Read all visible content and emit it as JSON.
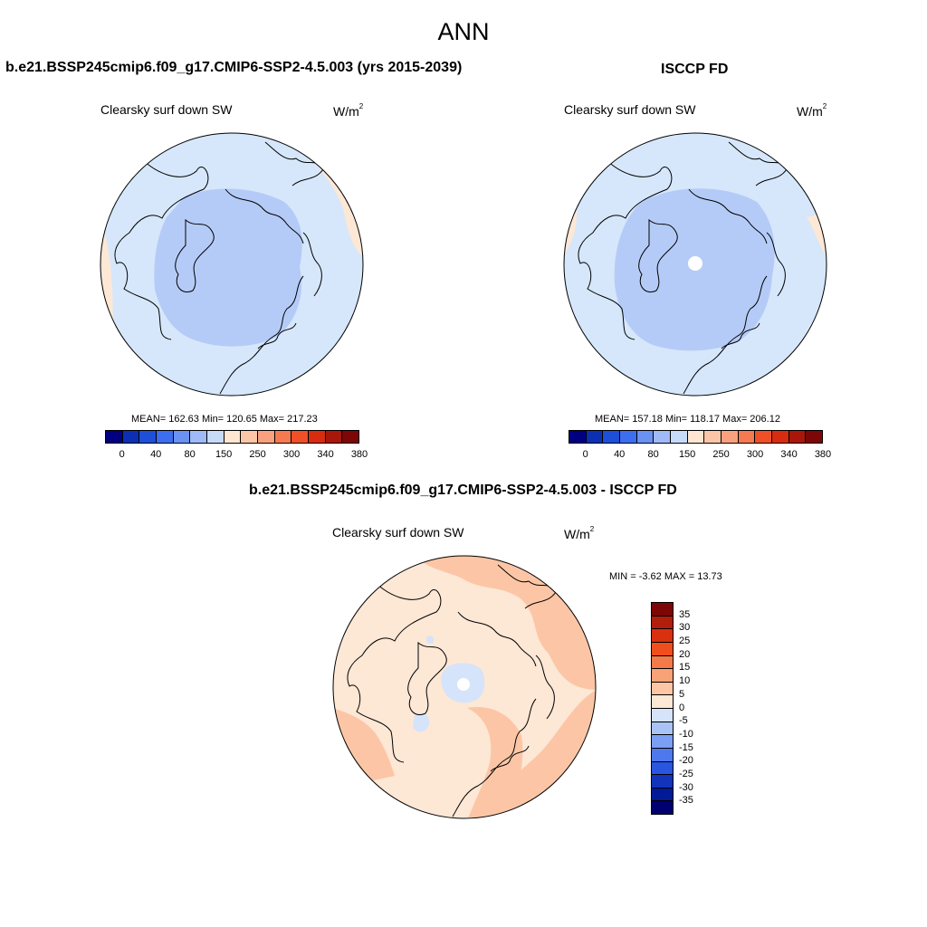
{
  "title": "ANN",
  "panels": {
    "model": {
      "case_title": "b.e21.BSSP245cmip6.f09_g17.CMIP6-SSP2-4.5.003 (yrs 2015-2039)",
      "variable": "Clearsky surf down SW",
      "units_base": "W/m",
      "units_exp": "2",
      "stats": "MEAN= 162.63  Min= 120.65  Max= 217.23"
    },
    "obs": {
      "case_title": "ISCCP FD",
      "variable": "Clearsky surf down SW",
      "units_base": "W/m",
      "units_exp": "2",
      "stats": "MEAN= 157.18  Min= 118.17  Max= 206.12"
    },
    "diff": {
      "case_title": "b.e21.BSSP245cmip6.f09_g17.CMIP6-SSP2-4.5.003 - ISCCP FD",
      "variable": "Clearsky surf down SW",
      "units_base": "W/m",
      "units_exp": "2",
      "stats": "MIN =  -3.62 MAX =  13.73"
    }
  },
  "colorbars": {
    "abs": {
      "colors": [
        "#000080",
        "#0c2fb3",
        "#1d4fd8",
        "#3e6ef0",
        "#6a92f2",
        "#9fbaf6",
        "#c7daf8",
        "#fde7d2",
        "#fbc6a8",
        "#f9a17e",
        "#f57a52",
        "#ef5028",
        "#d82c10",
        "#a8170a",
        "#7d0606"
      ],
      "labels": [
        "0",
        "40",
        "80",
        "150",
        "250",
        "300",
        "340",
        "380"
      ]
    },
    "diff": {
      "colors": [
        "#7d0606",
        "#b31d0b",
        "#d9300f",
        "#f04f1d",
        "#f57a4a",
        "#f9a277",
        "#fcc6a6",
        "#fde7d5",
        "#d5e4fa",
        "#aac3f7",
        "#7b9ff3",
        "#4f78ee",
        "#2a55e0",
        "#1233bb",
        "#001a98",
        "#000070"
      ],
      "labels": [
        "35",
        "30",
        "25",
        "20",
        "15",
        "10",
        "5",
        "0",
        "-5",
        "-10",
        "-15",
        "-20",
        "-25",
        "-30",
        "-35"
      ]
    }
  },
  "map_colors": {
    "base_low": "#d6e7fb",
    "inner_low": "#b5cbf7",
    "high_warm": "#fde7d5",
    "diff_pos_light": "#fde7d5",
    "diff_pos_med": "#fcc6a6",
    "diff_neg": "#d5e4fa"
  }
}
